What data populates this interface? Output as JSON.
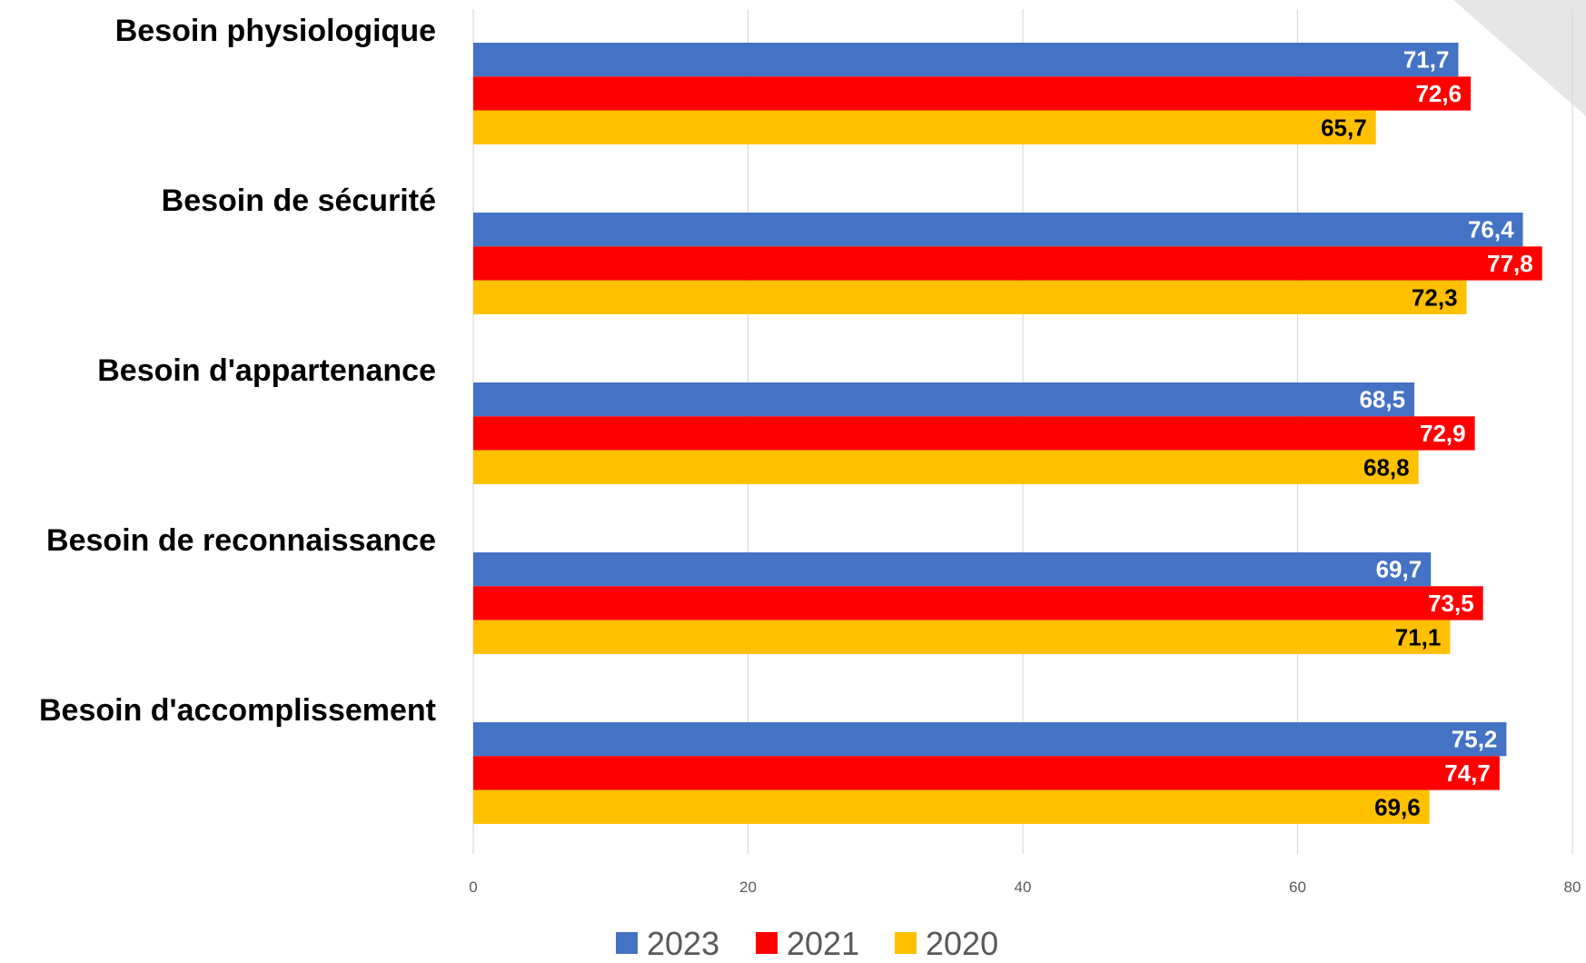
{
  "chart_data": {
    "type": "bar",
    "orientation": "horizontal",
    "categories": [
      "Besoin physiologique",
      "Besoin de sécurité",
      "Besoin d'appartenance",
      "Besoin de reconnaissance",
      "Besoin d'accomplissement"
    ],
    "series": [
      {
        "name": "2023",
        "color": "#4472C4",
        "label_color": "#FFFFFF",
        "values": [
          71.7,
          76.4,
          68.5,
          69.7,
          75.2
        ]
      },
      {
        "name": "2021",
        "color": "#FF0000",
        "label_color": "#FFFFFF",
        "values": [
          72.6,
          77.8,
          72.9,
          73.5,
          74.7
        ]
      },
      {
        "name": "2020",
        "color": "#FFC000",
        "label_color": "#000000",
        "values": [
          65.7,
          72.3,
          68.8,
          71.1,
          69.6
        ]
      }
    ],
    "data_labels": [
      [
        "71,7",
        "76,4",
        "68,5",
        "69,7",
        "75,2"
      ],
      [
        "72,6",
        "77,8",
        "72,9",
        "73,5",
        "74,7"
      ],
      [
        "65,7",
        "72,3",
        "68,8",
        "71,1",
        "69,6"
      ]
    ],
    "xlim": [
      0,
      80
    ],
    "x_ticks": [
      0,
      20,
      40,
      60,
      80
    ],
    "x_tick_labels": [
      "0",
      "20",
      "40",
      "60",
      "80"
    ],
    "grid": true,
    "legend_position": "bottom",
    "title": "",
    "xlabel": "",
    "ylabel": ""
  }
}
